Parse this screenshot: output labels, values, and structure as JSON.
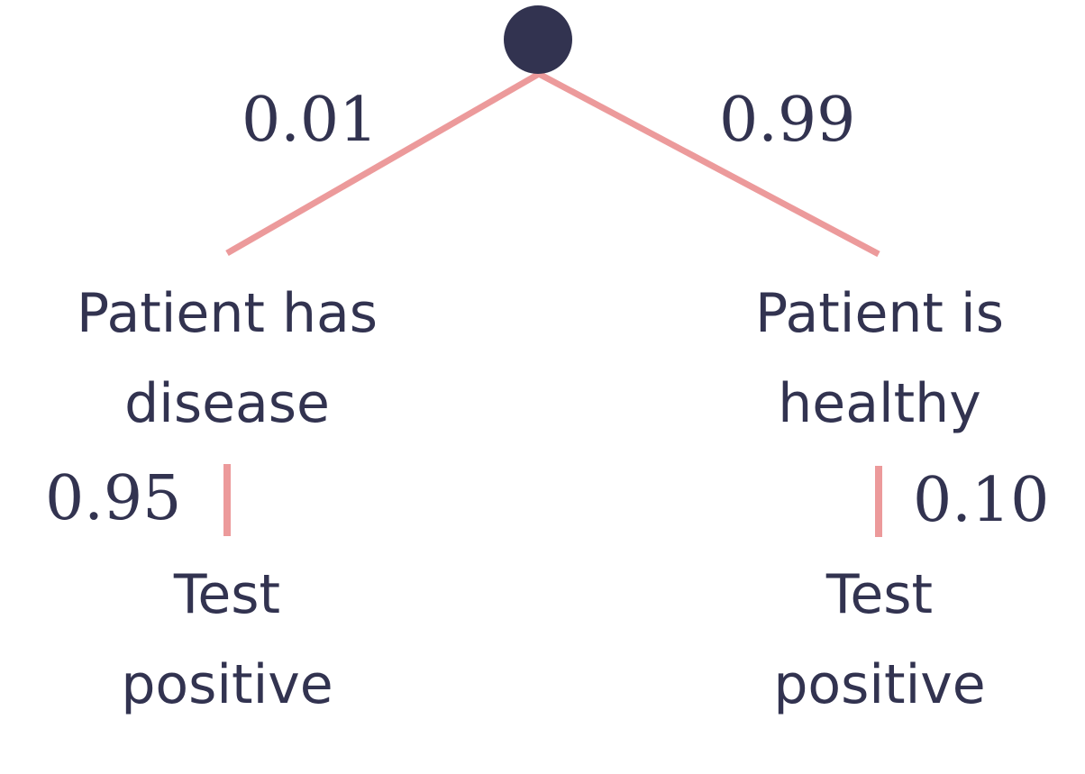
{
  "colors": {
    "node": "#323350",
    "edge": "#ec9a9b",
    "text": "#323350"
  },
  "tree": {
    "root": {},
    "branches": {
      "left": {
        "probability": "0.01",
        "node": {
          "line1": "Patient has",
          "line2": "disease"
        },
        "child": {
          "probability": "0.95",
          "node": {
            "line1": "Test",
            "line2": "positive"
          }
        }
      },
      "right": {
        "probability": "0.99",
        "node": {
          "line1": "Patient is",
          "line2": "healthy"
        },
        "child": {
          "probability": "0.10",
          "node": {
            "line1": "Test",
            "line2": "positive"
          }
        }
      }
    }
  }
}
